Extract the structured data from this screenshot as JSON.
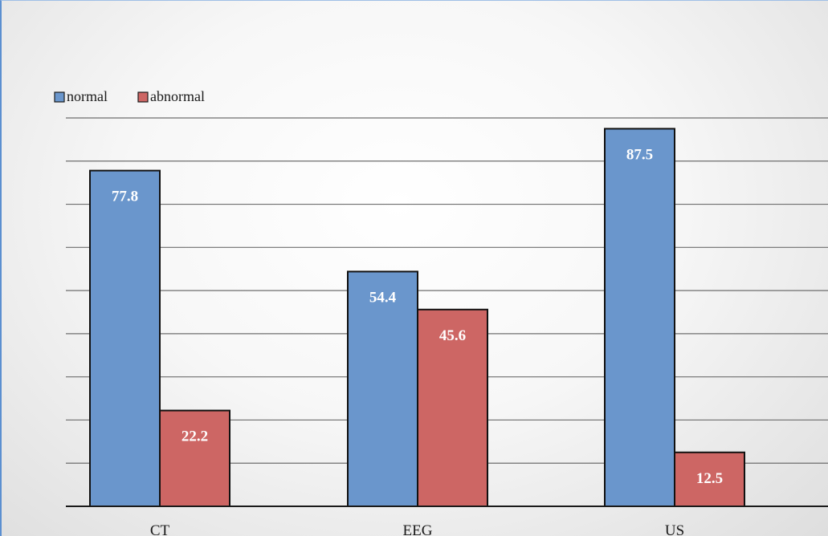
{
  "chart_data": {
    "type": "bar",
    "categories": [
      "CT",
      "EEG",
      "US"
    ],
    "series": [
      {
        "name": "normal",
        "values": [
          77.8,
          54.4,
          87.5
        ],
        "color": "#6a96cc"
      },
      {
        "name": "abnormal",
        "values": [
          22.2,
          45.6,
          12.5
        ],
        "color": "#cd6664"
      }
    ],
    "ylim": [
      0,
      90
    ],
    "grid": true,
    "legend_position": "top-left",
    "data_labels": [
      "77.8",
      "54.4",
      "87.5",
      "22.2",
      "45.6",
      "12.5"
    ]
  }
}
